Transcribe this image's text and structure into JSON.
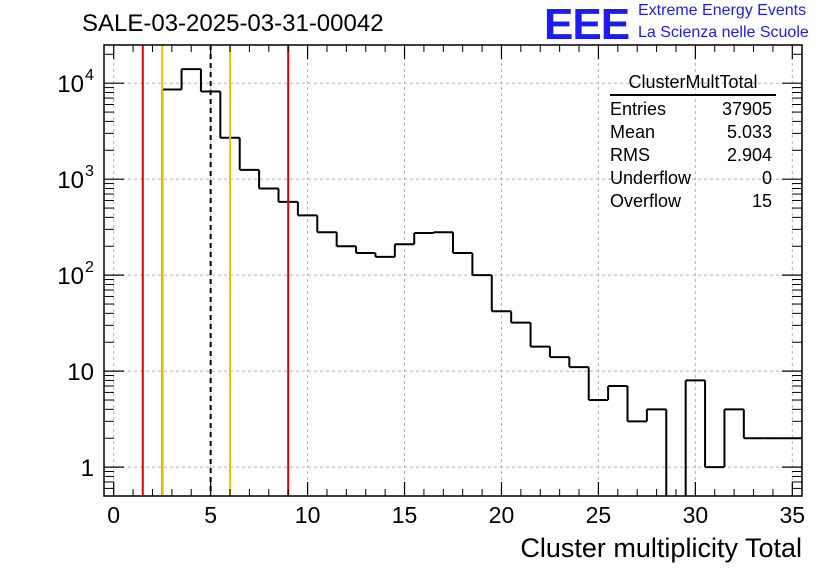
{
  "header": {
    "run_title": "SALE-03-2025-03-31-00042",
    "logo_text": "EEE",
    "logo_line1": "Extreme Energy Events",
    "logo_line2": "La Scienza nelle Scuole"
  },
  "stats": {
    "title": "ClusterMultTotal",
    "rows": [
      {
        "label": "Entries",
        "value": "37905"
      },
      {
        "label": "Mean",
        "value": "5.033"
      },
      {
        "label": "RMS",
        "value": "2.904"
      },
      {
        "label": "Underflow",
        "value": "0"
      },
      {
        "label": "Overflow",
        "value": "15"
      }
    ]
  },
  "colors": {
    "histogram": "#000000",
    "red_line": "#e00000",
    "yellow_line": "#f5c000",
    "grid": "#b4b4b4",
    "logo": "#1c1cf0"
  },
  "chart_data": {
    "type": "histogram",
    "xlabel": "Cluster multiplicity Total",
    "ylabel": "",
    "xlim": [
      -0.5,
      35.5
    ],
    "ylim": [
      0.5,
      25000
    ],
    "yscale": "log",
    "grid": true,
    "bin_width": 1,
    "x_ticks": [
      0,
      5,
      10,
      15,
      20,
      25,
      30,
      35
    ],
    "x_tick_labels": [
      "0",
      "5",
      "10",
      "15",
      "20",
      "25",
      "30",
      "35"
    ],
    "y_ticks": [
      1,
      10,
      100,
      1000,
      10000
    ],
    "y_tick_labels": [
      {
        "base": "1",
        "exp": ""
      },
      {
        "base": "10",
        "exp": ""
      },
      {
        "base": "10",
        "exp": "2"
      },
      {
        "base": "10",
        "exp": "3"
      },
      {
        "base": "10",
        "exp": "4"
      }
    ],
    "bin_low_edges": [
      -0.5,
      0.5,
      1.5,
      2.5,
      3.5,
      4.5,
      5.5,
      6.5,
      7.5,
      8.5,
      9.5,
      10.5,
      11.5,
      12.5,
      13.5,
      14.5,
      15.5,
      16.5,
      17.5,
      18.5,
      19.5,
      20.5,
      21.5,
      22.5,
      23.5,
      24.5,
      25.5,
      26.5,
      27.5,
      28.5,
      29.5,
      30.5,
      31.5,
      32.5,
      33.5,
      34.5
    ],
    "counts": [
      0,
      0,
      0,
      8600,
      14000,
      8200,
      2700,
      1250,
      800,
      580,
      420,
      280,
      200,
      170,
      155,
      210,
      275,
      280,
      170,
      100,
      42,
      32,
      18,
      14,
      11,
      5,
      7,
      3,
      4,
      0,
      8,
      1,
      4,
      2,
      2,
      2
    ],
    "vertical_lines": [
      {
        "x": 1.5,
        "color": "red",
        "style": "solid"
      },
      {
        "x": 2.5,
        "color": "yellow",
        "style": "solid"
      },
      {
        "x": 5.0,
        "color": "black",
        "style": "dashed"
      },
      {
        "x": 6.0,
        "color": "yellow",
        "style": "solid"
      },
      {
        "x": 9.0,
        "color": "red",
        "style": "solid"
      }
    ]
  }
}
